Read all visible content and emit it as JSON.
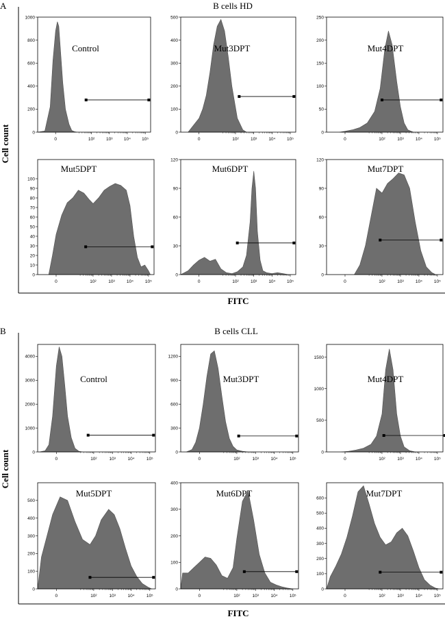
{
  "figure": {
    "panels": [
      {
        "letter": "A",
        "title": "B cells  HD",
        "ylabel": "Cell count",
        "xlabel": "FITC"
      },
      {
        "letter": "B",
        "title": "B cells  CLL",
        "ylabel": "Cell count",
        "xlabel": "FITC"
      }
    ]
  },
  "x_tick_labels": [
    "0",
    "10²",
    "10³",
    "10⁴",
    "10⁵"
  ],
  "chart_data": [
    {
      "type": "area",
      "panel": "A",
      "title": "Control",
      "ylim": [
        0,
        1000
      ],
      "yticks": [
        "0",
        "200",
        "400",
        "600",
        "800",
        "1000"
      ],
      "x_range": [
        -1,
        5.3
      ],
      "x_ticks": [
        0,
        2,
        3,
        4,
        5
      ],
      "series": [
        {
          "name": "Control",
          "x": [
            -1.0,
            -0.6,
            -0.3,
            -0.15,
            0.0,
            0.1,
            0.18,
            0.28,
            0.4,
            0.55,
            0.75,
            0.9,
            1.05,
            1.2
          ],
          "values": [
            0,
            10,
            220,
            620,
            880,
            960,
            920,
            700,
            430,
            200,
            70,
            15,
            4,
            0
          ]
        }
      ],
      "gate": [
        1.7,
        5.2
      ],
      "gate_y": 280
    },
    {
      "type": "area",
      "panel": "A",
      "title": "Mut3DPT",
      "ylim": [
        0,
        500
      ],
      "yticks": [
        "0",
        "100",
        "200",
        "300",
        "400",
        "500"
      ],
      "x_range": [
        -1,
        5.3
      ],
      "x_ticks": [
        0,
        2,
        3,
        4,
        5
      ],
      "series": [
        {
          "name": "Mut3DPT",
          "x": [
            -0.6,
            -0.4,
            -0.2,
            0.0,
            0.2,
            0.4,
            0.6,
            0.8,
            1.0,
            1.2,
            1.4,
            1.6,
            1.8,
            2.1,
            2.4,
            2.6
          ],
          "values": [
            0,
            20,
            40,
            60,
            100,
            160,
            260,
            380,
            460,
            490,
            440,
            330,
            200,
            60,
            10,
            0
          ]
        }
      ],
      "gate": [
        2.2,
        5.2
      ],
      "gate_y": 155
    },
    {
      "type": "area",
      "panel": "A",
      "title": "Mut4DPT",
      "ylim": [
        0,
        250
      ],
      "yticks": [
        "0",
        "50",
        "100",
        "150",
        "200",
        "250"
      ],
      "x_range": [
        -1,
        5.3
      ],
      "x_ticks": [
        0,
        2,
        3,
        4,
        5
      ],
      "series": [
        {
          "name": "Mut4DPT",
          "x": [
            -0.3,
            0.0,
            0.4,
            0.8,
            1.2,
            1.6,
            1.9,
            2.15,
            2.35,
            2.55,
            2.8,
            3.0,
            3.2,
            3.4,
            3.7
          ],
          "values": [
            0,
            2,
            5,
            10,
            20,
            45,
            95,
            180,
            220,
            190,
            110,
            55,
            20,
            5,
            0
          ]
        }
      ],
      "gate": [
        2.0,
        5.2
      ],
      "gate_y": 70
    },
    {
      "type": "area",
      "panel": "A",
      "title": "Mut5DPT",
      "ylim": [
        0,
        120
      ],
      "yticks": [
        "0",
        "10",
        "20",
        "30",
        "40",
        "50",
        "60",
        "70",
        "80",
        "90",
        "100"
      ],
      "x_range": [
        -1,
        5.3
      ],
      "x_ticks": [
        0,
        2,
        3,
        4,
        5
      ],
      "series": [
        {
          "name": "Mut5DPT",
          "x": [
            -0.4,
            -0.2,
            0.0,
            0.3,
            0.6,
            0.9,
            1.2,
            1.5,
            1.8,
            2.0,
            2.3,
            2.6,
            2.9,
            3.2,
            3.5,
            3.8,
            4.0,
            4.2,
            4.4,
            4.6,
            4.8,
            5.0,
            5.1
          ],
          "values": [
            0,
            20,
            42,
            62,
            75,
            80,
            88,
            85,
            78,
            74,
            80,
            88,
            92,
            95,
            93,
            88,
            72,
            40,
            18,
            8,
            10,
            4,
            0
          ]
        }
      ],
      "gate": [
        1.6,
        5.2
      ],
      "gate_y": 29
    },
    {
      "type": "area",
      "panel": "A",
      "title": "Mut6DPT",
      "ylim": [
        0,
        120
      ],
      "yticks": [
        "0",
        "30",
        "60",
        "90",
        "120"
      ],
      "x_range": [
        -1,
        5.3
      ],
      "x_ticks": [
        0,
        2,
        3,
        4,
        5
      ],
      "series": [
        {
          "name": "Mut6DPT",
          "x": [
            -1.0,
            -0.6,
            -0.3,
            0.0,
            0.3,
            0.6,
            0.9,
            1.2,
            1.5,
            1.8,
            2.1,
            2.4,
            2.6,
            2.8,
            2.9,
            3.0,
            3.1,
            3.2,
            3.35,
            3.5,
            3.7,
            4.0,
            4.3,
            4.6,
            4.9
          ],
          "values": [
            0,
            4,
            10,
            15,
            18,
            14,
            16,
            6,
            2,
            1,
            3,
            8,
            20,
            55,
            90,
            108,
            90,
            45,
            15,
            4,
            2,
            1,
            2,
            1,
            0
          ]
        }
      ],
      "gate": [
        2.1,
        5.2
      ],
      "gate_y": 33
    },
    {
      "type": "area",
      "panel": "A",
      "title": "Mut7DPT",
      "ylim": [
        0,
        120
      ],
      "yticks": [
        "0",
        "30",
        "60",
        "90",
        "120"
      ],
      "x_range": [
        -1,
        5.3
      ],
      "x_ticks": [
        0,
        2,
        3,
        4,
        5
      ],
      "series": [
        {
          "name": "Mut7DPT",
          "x": [
            0.5,
            0.8,
            1.1,
            1.4,
            1.7,
            2.0,
            2.3,
            2.6,
            2.9,
            3.2,
            3.5,
            3.8,
            4.1,
            4.4,
            4.7,
            4.9
          ],
          "values": [
            0,
            10,
            30,
            60,
            90,
            85,
            95,
            100,
            106,
            104,
            90,
            55,
            25,
            8,
            2,
            0
          ]
        }
      ],
      "gate": [
        1.9,
        5.2
      ],
      "gate_y": 36
    },
    {
      "type": "area",
      "panel": "B",
      "title": "Control",
      "ylim": [
        0,
        4500
      ],
      "yticks": [
        "0",
        "1000",
        "2000",
        "3000",
        "4000"
      ],
      "x_range": [
        -1,
        5.3
      ],
      "x_ticks": [
        0,
        2,
        3,
        4,
        5
      ],
      "series": [
        {
          "name": "Control",
          "x": [
            -0.9,
            -0.6,
            -0.4,
            -0.2,
            0.0,
            0.15,
            0.3,
            0.45,
            0.6,
            0.8,
            1.0,
            1.2,
            1.4
          ],
          "values": [
            0,
            50,
            300,
            1500,
            3600,
            4400,
            4000,
            2800,
            1500,
            600,
            150,
            30,
            0
          ]
        }
      ],
      "gate": [
        1.7,
        5.2
      ],
      "gate_y": 700
    },
    {
      "type": "area",
      "panel": "B",
      "title": "Mut3DPT",
      "ylim": [
        0,
        1350
      ],
      "yticks": [
        "0",
        "300",
        "600",
        "900",
        "1200"
      ],
      "x_range": [
        -1,
        5.3
      ],
      "x_ticks": [
        0,
        2,
        3,
        4,
        5
      ],
      "series": [
        {
          "name": "Mut3DPT",
          "x": [
            -0.7,
            -0.4,
            -0.2,
            0.0,
            0.2,
            0.4,
            0.6,
            0.8,
            1.0,
            1.2,
            1.4,
            1.6,
            1.8,
            2.0,
            2.3,
            2.6
          ],
          "values": [
            0,
            30,
            120,
            300,
            600,
            950,
            1230,
            1270,
            1050,
            700,
            380,
            170,
            70,
            25,
            8,
            0
          ]
        }
      ],
      "gate": [
        2.1,
        5.2
      ],
      "gate_y": 200
    },
    {
      "type": "area",
      "panel": "B",
      "title": "Mut4DPT",
      "ylim": [
        0,
        1700
      ],
      "yticks": [
        "0",
        "500",
        "1000",
        "1500"
      ],
      "x_range": [
        -1,
        5.3
      ],
      "x_ticks": [
        0,
        2,
        3,
        4,
        5
      ],
      "series": [
        {
          "name": "Mut4DPT",
          "x": [
            -0.2,
            0.2,
            0.6,
            1.0,
            1.4,
            1.7,
            2.0,
            2.2,
            2.4,
            2.6,
            2.8,
            3.0,
            3.2,
            3.5,
            3.8
          ],
          "values": [
            0,
            10,
            30,
            60,
            120,
            250,
            600,
            1300,
            1630,
            1300,
            600,
            250,
            80,
            20,
            0
          ]
        }
      ],
      "gate": [
        2.1,
        5.4
      ],
      "gate_y": 260
    },
    {
      "type": "area",
      "panel": "B",
      "title": "Mut5DPT",
      "ylim": [
        0,
        600
      ],
      "yticks": [
        "0",
        "100",
        "200",
        "300",
        "400",
        "500"
      ],
      "x_range": [
        -1,
        5.3
      ],
      "x_ticks": [
        0,
        2,
        3,
        4,
        5
      ],
      "series": [
        {
          "name": "Mut5DPT",
          "x": [
            -1.0,
            -0.8,
            -0.5,
            -0.2,
            0.2,
            0.6,
            1.0,
            1.4,
            1.8,
            2.1,
            2.4,
            2.8,
            3.1,
            3.4,
            3.7,
            4.0,
            4.3,
            4.6,
            4.9,
            5.1
          ],
          "values": [
            0,
            180,
            300,
            420,
            520,
            500,
            380,
            280,
            250,
            300,
            390,
            450,
            420,
            340,
            230,
            130,
            70,
            30,
            10,
            0
          ]
        }
      ],
      "gate": [
        1.8,
        5.2
      ],
      "gate_y": 65
    },
    {
      "type": "area",
      "panel": "B",
      "title": "Mut6DPT",
      "ylim": [
        0,
        400
      ],
      "yticks": [
        "0",
        "100",
        "200",
        "300",
        "400"
      ],
      "x_range": [
        -1,
        5.3
      ],
      "x_ticks": [
        0,
        2,
        3,
        4,
        5
      ],
      "series": [
        {
          "name": "Mut6DPT",
          "x": [
            -1.0,
            -0.9,
            -0.6,
            -0.3,
            0.0,
            0.3,
            0.6,
            0.9,
            1.2,
            1.5,
            1.8,
            2.0,
            2.3,
            2.6,
            2.9,
            3.2,
            3.5,
            3.8,
            4.1,
            4.4,
            4.7,
            5.0
          ],
          "values": [
            0,
            60,
            60,
            80,
            100,
            120,
            115,
            90,
            50,
            40,
            80,
            190,
            330,
            370,
            260,
            130,
            60,
            25,
            15,
            8,
            3,
            0
          ]
        }
      ],
      "gate": [
        2.4,
        5.2
      ],
      "gate_y": 65
    },
    {
      "type": "area",
      "panel": "B",
      "title": "Mut7DPT",
      "ylim": [
        0,
        700
      ],
      "yticks": [
        "0",
        "100",
        "200",
        "300",
        "400",
        "500",
        "600"
      ],
      "x_range": [
        -1,
        5.3
      ],
      "x_ticks": [
        0,
        2,
        3,
        4,
        5
      ],
      "series": [
        {
          "name": "Mut7DPT",
          "x": [
            -1.0,
            -0.8,
            -0.5,
            -0.2,
            0.1,
            0.4,
            0.7,
            1.0,
            1.3,
            1.6,
            1.9,
            2.2,
            2.5,
            2.8,
            3.1,
            3.4,
            3.7,
            4.0,
            4.3,
            4.6,
            4.9,
            5.1
          ],
          "values": [
            0,
            80,
            150,
            230,
            340,
            480,
            640,
            680,
            560,
            430,
            340,
            290,
            310,
            370,
            400,
            350,
            250,
            140,
            60,
            25,
            5,
            0
          ]
        }
      ],
      "gate": [
        1.9,
        5.2
      ],
      "gate_y": 110
    }
  ],
  "colors": {
    "fill": "#6e6e6e",
    "stroke": "#505050",
    "frame": "#000000"
  }
}
